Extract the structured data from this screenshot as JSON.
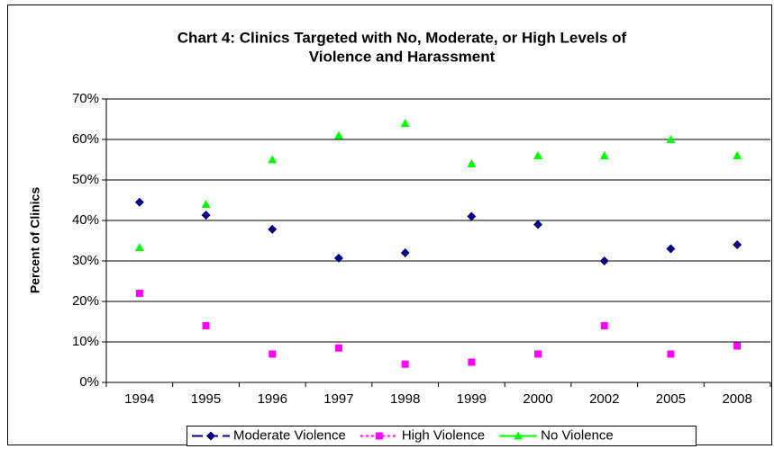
{
  "chart_data": {
    "type": "line",
    "title": [
      "Chart 4: Clinics Targeted with No, Moderate, or High Levels of",
      "Violence and Harassment"
    ],
    "y_label": "Percent of Clinics",
    "categories": [
      "1994",
      "1995",
      "1996",
      "1997",
      "1998",
      "1999",
      "2000",
      "2002",
      "2005",
      "2008"
    ],
    "series": [
      {
        "name": "Moderate Violence",
        "color": "#000080",
        "dash": "dash",
        "marker": "diamond",
        "values": [
          44.5,
          41.3,
          37.8,
          30.7,
          32,
          41,
          39,
          30,
          33,
          34
        ]
      },
      {
        "name": "High Violence",
        "color": "#ff00ff",
        "dash": "dot",
        "marker": "square",
        "values": [
          22,
          14,
          7,
          8.5,
          4.5,
          5,
          7,
          14,
          7,
          9
        ]
      },
      {
        "name": "No Violence",
        "color": "#00ff00",
        "dash": "solid",
        "marker": "triangle",
        "values": [
          33.3,
          44,
          55,
          61,
          64,
          54,
          56,
          56,
          60,
          56
        ]
      }
    ],
    "ylim": [
      0,
      70
    ],
    "yticks": [
      {
        "value": 0,
        "label": "0%"
      },
      {
        "value": 10,
        "label": "10%"
      },
      {
        "value": 20,
        "label": "20%"
      },
      {
        "value": 30,
        "label": "30%"
      },
      {
        "value": 40,
        "label": "40%"
      },
      {
        "value": 50,
        "label": "50%"
      },
      {
        "value": 60,
        "label": "60%"
      },
      {
        "value": 70,
        "label": "70%"
      }
    ],
    "grid": true,
    "legend": "bottom"
  }
}
